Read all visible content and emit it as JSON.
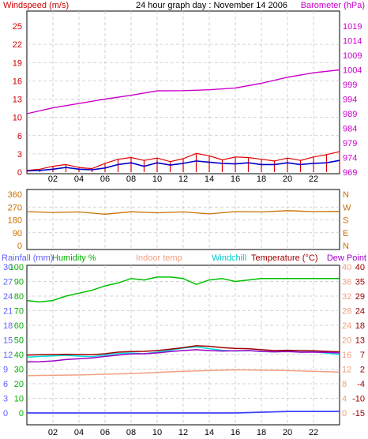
{
  "chart_data": [
    {
      "type": "line",
      "title": "24 hour graph day : November 14 2006",
      "x_ticks": [
        "02",
        "04",
        "06",
        "08",
        "10",
        "12",
        "14",
        "16",
        "18",
        "20",
        "22"
      ],
      "left_axis": {
        "label": "Windspeed (m/s)",
        "ticks": [
          "0",
          "3",
          "6",
          "10",
          "13",
          "16",
          "19",
          "22",
          "25"
        ],
        "range": [
          0,
          25
        ]
      },
      "right_axis": {
        "label": "Barometer (hPa)",
        "ticks": [
          "969",
          "974",
          "979",
          "984",
          "989",
          "994",
          "999",
          "1004",
          "1009",
          "1014",
          "1019"
        ],
        "range": [
          969,
          1019
        ]
      },
      "series": [
        {
          "name": "Windspeed (m/s)",
          "color": "#e00000",
          "axis": "left",
          "x": [
            0,
            1,
            2,
            3,
            4,
            5,
            6,
            7,
            8,
            9,
            10,
            11,
            12,
            13,
            14,
            15,
            16,
            17,
            18,
            19,
            20,
            21,
            22,
            23,
            24
          ],
          "values": [
            0.3,
            0.5,
            1.0,
            1.3,
            0.8,
            0.6,
            1.5,
            2.2,
            2.5,
            2.0,
            2.4,
            1.8,
            2.3,
            3.2,
            2.8,
            2.1,
            2.6,
            2.5,
            2.2,
            1.9,
            2.4,
            2.0,
            2.6,
            3.0,
            3.5
          ]
        },
        {
          "name": "Windspeed avg (m/s)",
          "color": "#0000c8",
          "axis": "left",
          "x": [
            0,
            1,
            2,
            3,
            4,
            5,
            6,
            7,
            8,
            9,
            10,
            11,
            12,
            13,
            14,
            15,
            16,
            17,
            18,
            19,
            20,
            21,
            22,
            23,
            24
          ],
          "values": [
            0.2,
            0.3,
            0.5,
            0.8,
            0.5,
            0.4,
            0.7,
            1.3,
            1.6,
            1.0,
            1.6,
            1.2,
            1.5,
            1.9,
            1.7,
            1.5,
            1.4,
            1.6,
            1.3,
            1.3,
            1.6,
            1.3,
            1.5,
            1.6,
            2.0
          ]
        },
        {
          "name": "Barometer (hPa)",
          "color": "#cc00cc",
          "axis": "right",
          "x": [
            0,
            2,
            4,
            6,
            8,
            10,
            12,
            14,
            16,
            18,
            20,
            22,
            24
          ],
          "values": [
            989.0,
            991.0,
            992.5,
            994.0,
            995.3,
            996.8,
            996.9,
            997.2,
            997.8,
            999.4,
            1001.5,
            1003.0,
            1004.0
          ]
        }
      ]
    },
    {
      "type": "line",
      "left_axis": {
        "ticks": [
          "360",
          "270",
          "180",
          "90",
          "0"
        ],
        "range": [
          0,
          360
        ]
      },
      "right_axis": {
        "ticks": [
          "N",
          "W",
          "S",
          "E",
          "N"
        ]
      },
      "x_ticks": [],
      "series": [
        {
          "name": "Wind direction",
          "color": "#c87000",
          "x": [
            0,
            2,
            4,
            6,
            8,
            10,
            12,
            14,
            16,
            18,
            20,
            22,
            24
          ],
          "values": [
            238,
            232,
            236,
            220,
            237,
            230,
            236,
            222,
            238,
            236,
            245,
            238,
            240
          ]
        }
      ]
    },
    {
      "type": "line",
      "x_ticks": [
        "02",
        "04",
        "06",
        "08",
        "10",
        "12",
        "14",
        "16",
        "18",
        "20",
        "22"
      ],
      "labels": [
        "Rainfall (mm)",
        "Humidity %",
        "Indoor temp",
        "Windchill",
        "Temperature (°C)",
        "Dew Point"
      ],
      "axis_rain": {
        "label": "Rainfall (mm)",
        "ticks": [
          "0",
          "3",
          "6",
          "9",
          "12",
          "15",
          "18",
          "21",
          "24",
          "27",
          "30"
        ],
        "range": [
          0,
          30
        ]
      },
      "axis_humidity": {
        "label": "Humidity %",
        "ticks": [
          "0",
          "10",
          "20",
          "30",
          "40",
          "50",
          "60",
          "70",
          "80",
          "90",
          "100"
        ],
        "range": [
          0,
          100
        ]
      },
      "axis_indoor": {
        "label": "Indoor temp",
        "ticks": [
          "0",
          "4",
          "8",
          "12",
          "16",
          "20",
          "24",
          "28",
          "32",
          "36",
          "40"
        ],
        "range": [
          0,
          40
        ]
      },
      "axis_temp": {
        "label": "Temperature (°C)",
        "ticks": [
          "-15",
          "-10",
          "-4",
          "2",
          "7",
          "13",
          "18",
          "24",
          "29",
          "35",
          "40"
        ],
        "range": [
          -15,
          40
        ]
      },
      "series": [
        {
          "name": "Humidity %",
          "color": "#00c000",
          "axis": "humidity",
          "x": [
            0,
            1,
            2,
            3,
            4,
            5,
            6,
            7,
            8,
            9,
            10,
            11,
            12,
            13,
            14,
            15,
            16,
            17,
            18,
            19,
            20,
            21,
            22,
            23,
            24
          ],
          "values": [
            77,
            76,
            77,
            80,
            82,
            84,
            87,
            89,
            92,
            91,
            93,
            93,
            92,
            88,
            91,
            92,
            90,
            91,
            92,
            92,
            92,
            92,
            92,
            92,
            92
          ]
        },
        {
          "name": "Indoor temp",
          "color": "#f0a080",
          "axis": "indoor",
          "x": [
            0,
            4,
            8,
            12,
            16,
            20,
            24
          ],
          "values": [
            10.2,
            10.4,
            10.8,
            11.4,
            11.8,
            11.6,
            11.2
          ]
        },
        {
          "name": "Windchill",
          "color": "#00e0e0",
          "axis": "temp",
          "x": [
            0,
            1,
            2,
            3,
            4,
            5,
            6,
            7,
            8,
            9,
            10,
            11,
            12,
            13,
            14,
            15,
            16,
            17,
            18,
            19,
            20,
            21,
            22,
            23,
            24
          ],
          "values": [
            6.0,
            6.3,
            6.5,
            6.7,
            6.4,
            6.2,
            6.8,
            7.4,
            7.6,
            7.3,
            7.9,
            8.6,
            9.4,
            9.9,
            9.2,
            8.6,
            8.3,
            8.5,
            8.1,
            8.0,
            8.3,
            7.9,
            8.0,
            7.5,
            7.0
          ]
        },
        {
          "name": "Temperature (°C)",
          "color": "#a00000",
          "axis": "temp",
          "x": [
            0,
            1,
            2,
            3,
            4,
            5,
            6,
            7,
            8,
            9,
            10,
            11,
            12,
            13,
            14,
            15,
            16,
            17,
            18,
            19,
            20,
            21,
            22,
            23,
            24
          ],
          "values": [
            6.8,
            6.9,
            7.0,
            7.1,
            7.0,
            6.9,
            7.3,
            7.9,
            8.1,
            8.2,
            8.5,
            9.0,
            9.6,
            10.3,
            10.1,
            9.6,
            9.3,
            9.2,
            8.8,
            8.5,
            8.6,
            8.5,
            8.4,
            8.2,
            8.0
          ]
        },
        {
          "name": "Dew Point",
          "color": "#a000c8",
          "axis": "temp",
          "x": [
            0,
            1,
            2,
            3,
            4,
            5,
            6,
            7,
            8,
            9,
            10,
            11,
            12,
            13,
            14,
            15,
            16,
            17,
            18,
            19,
            20,
            21,
            22,
            23,
            24
          ],
          "values": [
            4.2,
            4.3,
            4.6,
            5.1,
            5.4,
            5.7,
            6.3,
            6.8,
            7.2,
            7.3,
            7.6,
            8.1,
            8.5,
            8.8,
            8.5,
            8.3,
            8.4,
            8.5,
            8.2,
            8.0,
            8.1,
            7.9,
            7.9,
            7.8,
            7.6
          ]
        },
        {
          "name": "Rainfall (mm)",
          "color": "#4040ff",
          "axis": "rain",
          "x": [
            0,
            4,
            8,
            12,
            16,
            20,
            24
          ],
          "values": [
            0,
            0,
            0,
            0,
            0,
            0.3,
            0.3
          ]
        }
      ]
    }
  ]
}
